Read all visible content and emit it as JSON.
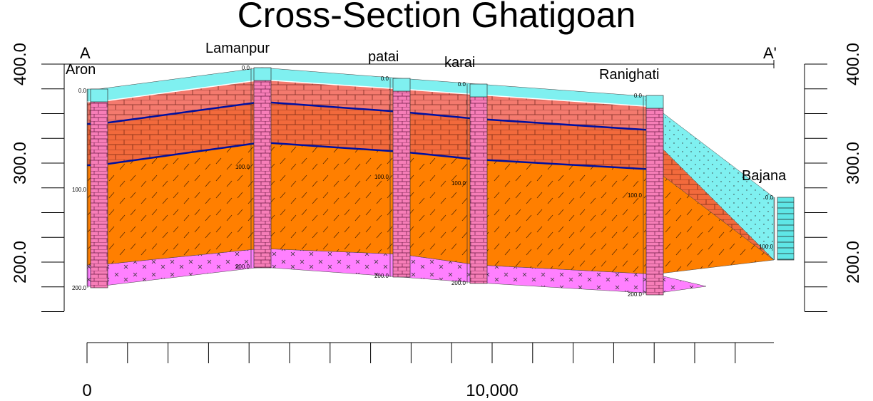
{
  "title": "Cross-Section Ghatigoan",
  "section": {
    "start": "A",
    "end": "A'"
  },
  "elevation_axis": {
    "left_labels": [
      "400.0",
      "300.0",
      "200.0"
    ],
    "right_labels": [
      "400.0",
      "300.0",
      "200.0"
    ]
  },
  "distance_axis": {
    "labels": [
      "0",
      "10,000"
    ]
  },
  "wells": [
    {
      "name": "Aron",
      "depth_labels": [
        "0.0",
        "100.0",
        "200.0"
      ]
    },
    {
      "name": "Lamanpur",
      "depth_labels": [
        "0.0",
        "100.0",
        "200.0"
      ]
    },
    {
      "name": "patai",
      "depth_labels": [
        "0.0",
        "100.0",
        "200.0"
      ]
    },
    {
      "name": "karai",
      "depth_labels": [
        "0.0",
        "100.0",
        "200.0"
      ]
    },
    {
      "name": "Ranighati",
      "depth_labels": [
        "0.0",
        "100.0",
        "200.0"
      ]
    },
    {
      "name": "Bajana",
      "depth_labels": [
        "0.0",
        "100.0"
      ]
    }
  ]
}
